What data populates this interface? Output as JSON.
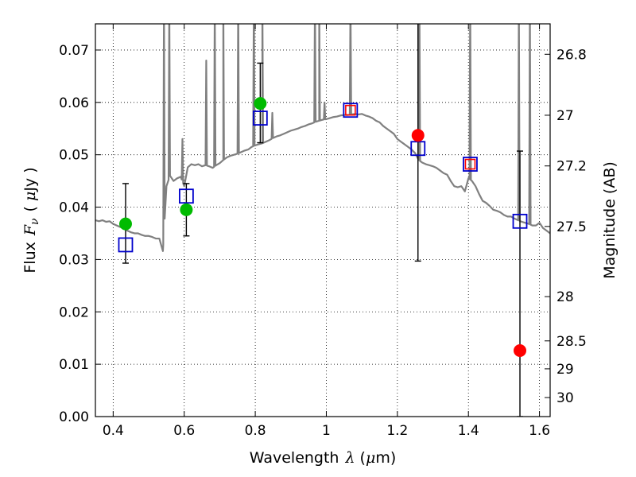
{
  "chart_data": {
    "type": "scatter",
    "title": "",
    "xlabel": "Wavelength",
    "xlabel_symbol": "λ",
    "xlabel_unit_open": "(",
    "xlabel_unit_mu": "μ",
    "xlabel_unit_rest": "m)",
    "ylabel": "Flux",
    "ylabel_symbol": "F",
    "ylabel_subscript": "ν",
    "ylabel_unit_open": "(",
    "ylabel_unit_mu": "μ",
    "ylabel_unit_rest": "Jy )",
    "ylabel_right": "Magnitude (AB)",
    "xlim": [
      0.35,
      1.63
    ],
    "ylim": [
      0.0,
      0.075
    ],
    "grid": true,
    "legend": "none",
    "x_ticks": [
      {
        "value": 0.4,
        "label": "0.4"
      },
      {
        "value": 0.6,
        "label": "0.6"
      },
      {
        "value": 0.8,
        "label": "0.8"
      },
      {
        "value": 1.0,
        "label": "1"
      },
      {
        "value": 1.2,
        "label": "1.2"
      },
      {
        "value": 1.4,
        "label": "1.4"
      },
      {
        "value": 1.6,
        "label": "1.6"
      }
    ],
    "y_ticks": [
      {
        "value": 0.0,
        "label": "0.00"
      },
      {
        "value": 0.01,
        "label": "0.01"
      },
      {
        "value": 0.02,
        "label": "0.02"
      },
      {
        "value": 0.03,
        "label": "0.03"
      },
      {
        "value": 0.04,
        "label": "0.04"
      },
      {
        "value": 0.05,
        "label": "0.05"
      },
      {
        "value": 0.06,
        "label": "0.06"
      },
      {
        "value": 0.07,
        "label": "0.07"
      }
    ],
    "right_ticks": [
      {
        "mag": 26.8,
        "label": "26.8"
      },
      {
        "mag": 27.0,
        "label": "27"
      },
      {
        "mag": 27.2,
        "label": "27.2"
      },
      {
        "mag": 27.5,
        "label": "27.5"
      },
      {
        "mag": 28.0,
        "label": "28"
      },
      {
        "mag": 28.5,
        "label": "28.5"
      },
      {
        "mag": 29.0,
        "label": "29"
      },
      {
        "mag": 30.0,
        "label": "30"
      }
    ],
    "colors": {
      "model": "#808080",
      "detected": "#00bb00",
      "upper": "#ff0000",
      "model_photometry": "#0000cc",
      "errorbar": "#000000",
      "grid": "#000000"
    },
    "model_spectrum": {
      "x": [
        0.35,
        0.36,
        0.37,
        0.38,
        0.39,
        0.4,
        0.41,
        0.42,
        0.43,
        0.44,
        0.45,
        0.46,
        0.47,
        0.48,
        0.49,
        0.5,
        0.51,
        0.52,
        0.53,
        0.54,
        0.55,
        0.56,
        0.57,
        0.58,
        0.59,
        0.6,
        0.61,
        0.62,
        0.63,
        0.64,
        0.65,
        0.66,
        0.67,
        0.68,
        0.69,
        0.7,
        0.71,
        0.72,
        0.73,
        0.74,
        0.75,
        0.76,
        0.77,
        0.78,
        0.79,
        0.8,
        0.81,
        0.82,
        0.83,
        0.84,
        0.85,
        0.86,
        0.87,
        0.88,
        0.89,
        0.9,
        0.91,
        0.92,
        0.93,
        0.94,
        0.95,
        0.96,
        0.97,
        0.98,
        0.99,
        1.0,
        1.01,
        1.02,
        1.03,
        1.04,
        1.05,
        1.06,
        1.07,
        1.08,
        1.09,
        1.1,
        1.11,
        1.12,
        1.13,
        1.14,
        1.15,
        1.16,
        1.17,
        1.18,
        1.19,
        1.2,
        1.21,
        1.22,
        1.23,
        1.24,
        1.25,
        1.26,
        1.27,
        1.28,
        1.29,
        1.3,
        1.31,
        1.32,
        1.33,
        1.34,
        1.35,
        1.36,
        1.37,
        1.38,
        1.39,
        1.4,
        1.41,
        1.42,
        1.43,
        1.44,
        1.45,
        1.46,
        1.47,
        1.48,
        1.49,
        1.5,
        1.51,
        1.52,
        1.53,
        1.54,
        1.55,
        1.56,
        1.57,
        1.58,
        1.59,
        1.6,
        1.61,
        1.62,
        1.63
      ],
      "y": [
        0.0375,
        0.0373,
        0.0375,
        0.0372,
        0.0373,
        0.0368,
        0.0365,
        0.0362,
        0.036,
        0.0355,
        0.0352,
        0.035,
        0.035,
        0.0347,
        0.0345,
        0.0345,
        0.0343,
        0.034,
        0.034,
        0.0316,
        0.044,
        0.046,
        0.045,
        0.0455,
        0.0458,
        0.044,
        0.0476,
        0.0482,
        0.048,
        0.0482,
        0.0478,
        0.048,
        0.0478,
        0.0475,
        0.048,
        0.0484,
        0.049,
        0.0495,
        0.0498,
        0.05,
        0.0502,
        0.0505,
        0.0508,
        0.051,
        0.0515,
        0.0518,
        0.052,
        0.0522,
        0.0525,
        0.0528,
        0.0532,
        0.0535,
        0.0537,
        0.054,
        0.0543,
        0.0546,
        0.0548,
        0.055,
        0.0553,
        0.0555,
        0.0558,
        0.056,
        0.0563,
        0.0565,
        0.0567,
        0.0568,
        0.057,
        0.0572,
        0.0573,
        0.0575,
        0.0576,
        0.0576,
        0.0577,
        0.0578,
        0.0577,
        0.0578,
        0.0575,
        0.0573,
        0.057,
        0.0565,
        0.0562,
        0.0555,
        0.055,
        0.0545,
        0.054,
        0.053,
        0.0525,
        0.052,
        0.0515,
        0.051,
        0.0503,
        0.049,
        0.0485,
        0.0482,
        0.048,
        0.0478,
        0.0475,
        0.047,
        0.0465,
        0.0462,
        0.045,
        0.044,
        0.0438,
        0.044,
        0.043,
        0.0455,
        0.045,
        0.044,
        0.0425,
        0.0412,
        0.0408,
        0.0402,
        0.0395,
        0.0393,
        0.039,
        0.0385,
        0.0382,
        0.0382,
        0.0378,
        0.0375,
        0.0372,
        0.037,
        0.0368,
        0.0365,
        0.0365,
        0.037,
        0.036,
        0.0355,
        0.035
      ]
    },
    "emission_lines": [
      {
        "x": 0.543,
        "peak": 0.08
      },
      {
        "x": 0.558,
        "peak": 0.08
      },
      {
        "x": 0.595,
        "peak": 0.053
      },
      {
        "x": 0.662,
        "peak": 0.068
      },
      {
        "x": 0.686,
        "peak": 0.08
      },
      {
        "x": 0.71,
        "peak": 0.08
      },
      {
        "x": 0.752,
        "peak": 0.08
      },
      {
        "x": 0.796,
        "peak": 0.08
      },
      {
        "x": 0.82,
        "peak": 0.08
      },
      {
        "x": 0.848,
        "peak": 0.058
      },
      {
        "x": 0.968,
        "peak": 0.08
      },
      {
        "x": 0.98,
        "peak": 0.08
      },
      {
        "x": 0.995,
        "peak": 0.06
      },
      {
        "x": 1.068,
        "peak": 0.08
      },
      {
        "x": 1.262,
        "peak": 0.08
      },
      {
        "x": 1.405,
        "peak": 0.08
      },
      {
        "x": 1.542,
        "peak": 0.08
      },
      {
        "x": 1.573,
        "peak": 0.08
      }
    ],
    "model_photometry": [
      {
        "x": 0.435,
        "y": 0.0328
      },
      {
        "x": 0.606,
        "y": 0.0421
      },
      {
        "x": 0.814,
        "y": 0.057
      },
      {
        "x": 1.068,
        "y": 0.0585
      },
      {
        "x": 1.258,
        "y": 0.0512
      },
      {
        "x": 1.405,
        "y": 0.0482
      },
      {
        "x": 1.545,
        "y": 0.0373
      }
    ],
    "detections": [
      {
        "x": 0.435,
        "y": 0.0368,
        "yerr_low": 0.0293,
        "yerr_high": 0.0445
      },
      {
        "x": 0.606,
        "y": 0.0395,
        "yerr_low": 0.0345,
        "yerr_high": 0.0445
      },
      {
        "x": 0.814,
        "y": 0.0598,
        "yerr_low": 0.0523,
        "yerr_high": 0.0675
      }
    ],
    "upper_limits": [
      {
        "x": 1.068,
        "y": 0.0585,
        "kind": "open-square"
      },
      {
        "x": 1.258,
        "y": 0.0537,
        "yerr_low": 0.0297,
        "yerr_high": 0.08,
        "kind": "dot"
      },
      {
        "x": 1.405,
        "y": 0.0482,
        "kind": "open-square"
      },
      {
        "x": 1.545,
        "y": 0.0126,
        "yerr_low": 0.0,
        "yerr_high": 0.0507,
        "kind": "dot"
      }
    ]
  }
}
